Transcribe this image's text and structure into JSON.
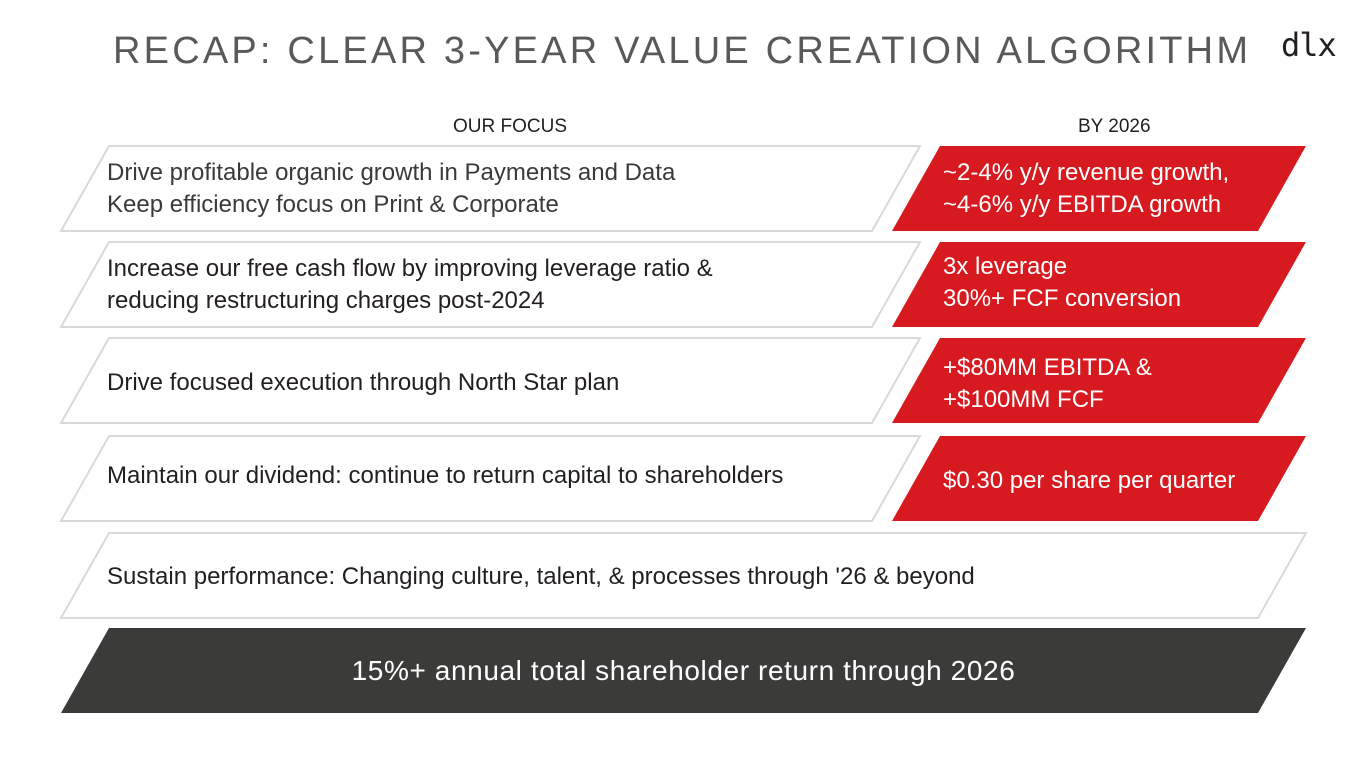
{
  "header": {
    "title": "RECAP: CLEAR 3-YEAR VALUE CREATION ALGORITHM",
    "logo": "dlx"
  },
  "columns": {
    "focus": "OUR FOCUS",
    "by": "BY 2026"
  },
  "rows": [
    {
      "focus": [
        "Drive profitable organic growth in Payments and Data",
        "Keep efficiency focus on Print & Corporate"
      ],
      "target": [
        "~2-4% y/y revenue growth,",
        "~4-6% y/y EBITDA growth"
      ]
    },
    {
      "focus": [
        "Increase our free cash flow by improving leverage ratio &",
        "reducing restructuring charges post-2024"
      ],
      "target": [
        "3x leverage",
        "30%+ FCF conversion"
      ]
    },
    {
      "focus": [
        "Drive focused execution through North Star plan"
      ],
      "target": [
        "+$80MM EBITDA &",
        "+$100MM FCF"
      ]
    },
    {
      "focus": [
        "Maintain our dividend: continue to return capital to shareholders"
      ],
      "target": [
        "$0.30 per share per quarter"
      ]
    }
  ],
  "sustain": "Sustain performance: Changing culture, talent, & processes through '26 & beyond",
  "bottom": "15%+ annual total shareholder return through 2026",
  "colors": {
    "accent_red": "#d71920",
    "dark_banner": "#3b3c3a",
    "outline": "#d9d9d9",
    "title_gray": "#58595b"
  }
}
